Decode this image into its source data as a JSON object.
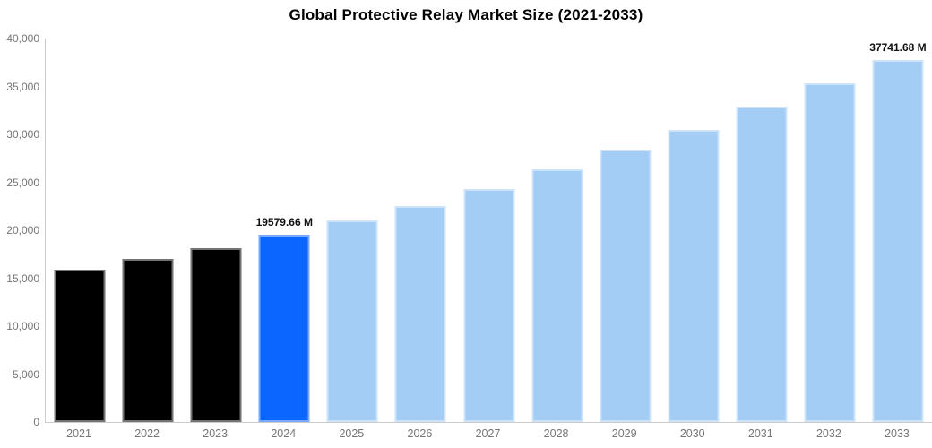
{
  "chart_data": {
    "type": "bar",
    "title": "Global Protective Relay Market Size (2021-2033)",
    "unit": "M",
    "xlabel": "",
    "ylabel": "",
    "grid": false,
    "legend": "none",
    "ylim": [
      0,
      40000
    ],
    "ytick_step": 5000,
    "ytick_labels": [
      "0",
      "5,000",
      "10,000",
      "15,000",
      "20,000",
      "25,000",
      "30,000",
      "35,000",
      "40,000"
    ],
    "categories": [
      "2021",
      "2022",
      "2023",
      "2024",
      "2025",
      "2026",
      "2027",
      "2028",
      "2029",
      "2030",
      "2031",
      "2032",
      "2033"
    ],
    "values": [
      15900,
      17000,
      18170,
      19579.66,
      21000,
      22520,
      24300,
      26380,
      28400,
      30500,
      32870,
      35300,
      37741.68
    ],
    "colors": {
      "historical": "#000000",
      "highlight": "#0a66ff",
      "forecast": "#a4cdf6"
    },
    "bars": [
      {
        "year": "2021",
        "value": 15900,
        "segment": "historical",
        "label": ""
      },
      {
        "year": "2022",
        "value": 17000,
        "segment": "historical",
        "label": ""
      },
      {
        "year": "2023",
        "value": 18170,
        "segment": "historical",
        "label": ""
      },
      {
        "year": "2024",
        "value": 19579.66,
        "segment": "highlight",
        "label": "19579.66 M"
      },
      {
        "year": "2025",
        "value": 21000,
        "segment": "forecast",
        "label": ""
      },
      {
        "year": "2026",
        "value": 22520,
        "segment": "forecast",
        "label": ""
      },
      {
        "year": "2027",
        "value": 24300,
        "segment": "forecast",
        "label": ""
      },
      {
        "year": "2028",
        "value": 26380,
        "segment": "forecast",
        "label": ""
      },
      {
        "year": "2029",
        "value": 28400,
        "segment": "forecast",
        "label": ""
      },
      {
        "year": "2030",
        "value": 30500,
        "segment": "forecast",
        "label": ""
      },
      {
        "year": "2031",
        "value": 32870,
        "segment": "forecast",
        "label": ""
      },
      {
        "year": "2032",
        "value": 35300,
        "segment": "forecast",
        "label": ""
      },
      {
        "year": "2033",
        "value": 37741.68,
        "segment": "forecast",
        "label": "37741.68 M"
      }
    ],
    "axis_text_color": "#757575",
    "axis_line_color": "#cccccc"
  }
}
